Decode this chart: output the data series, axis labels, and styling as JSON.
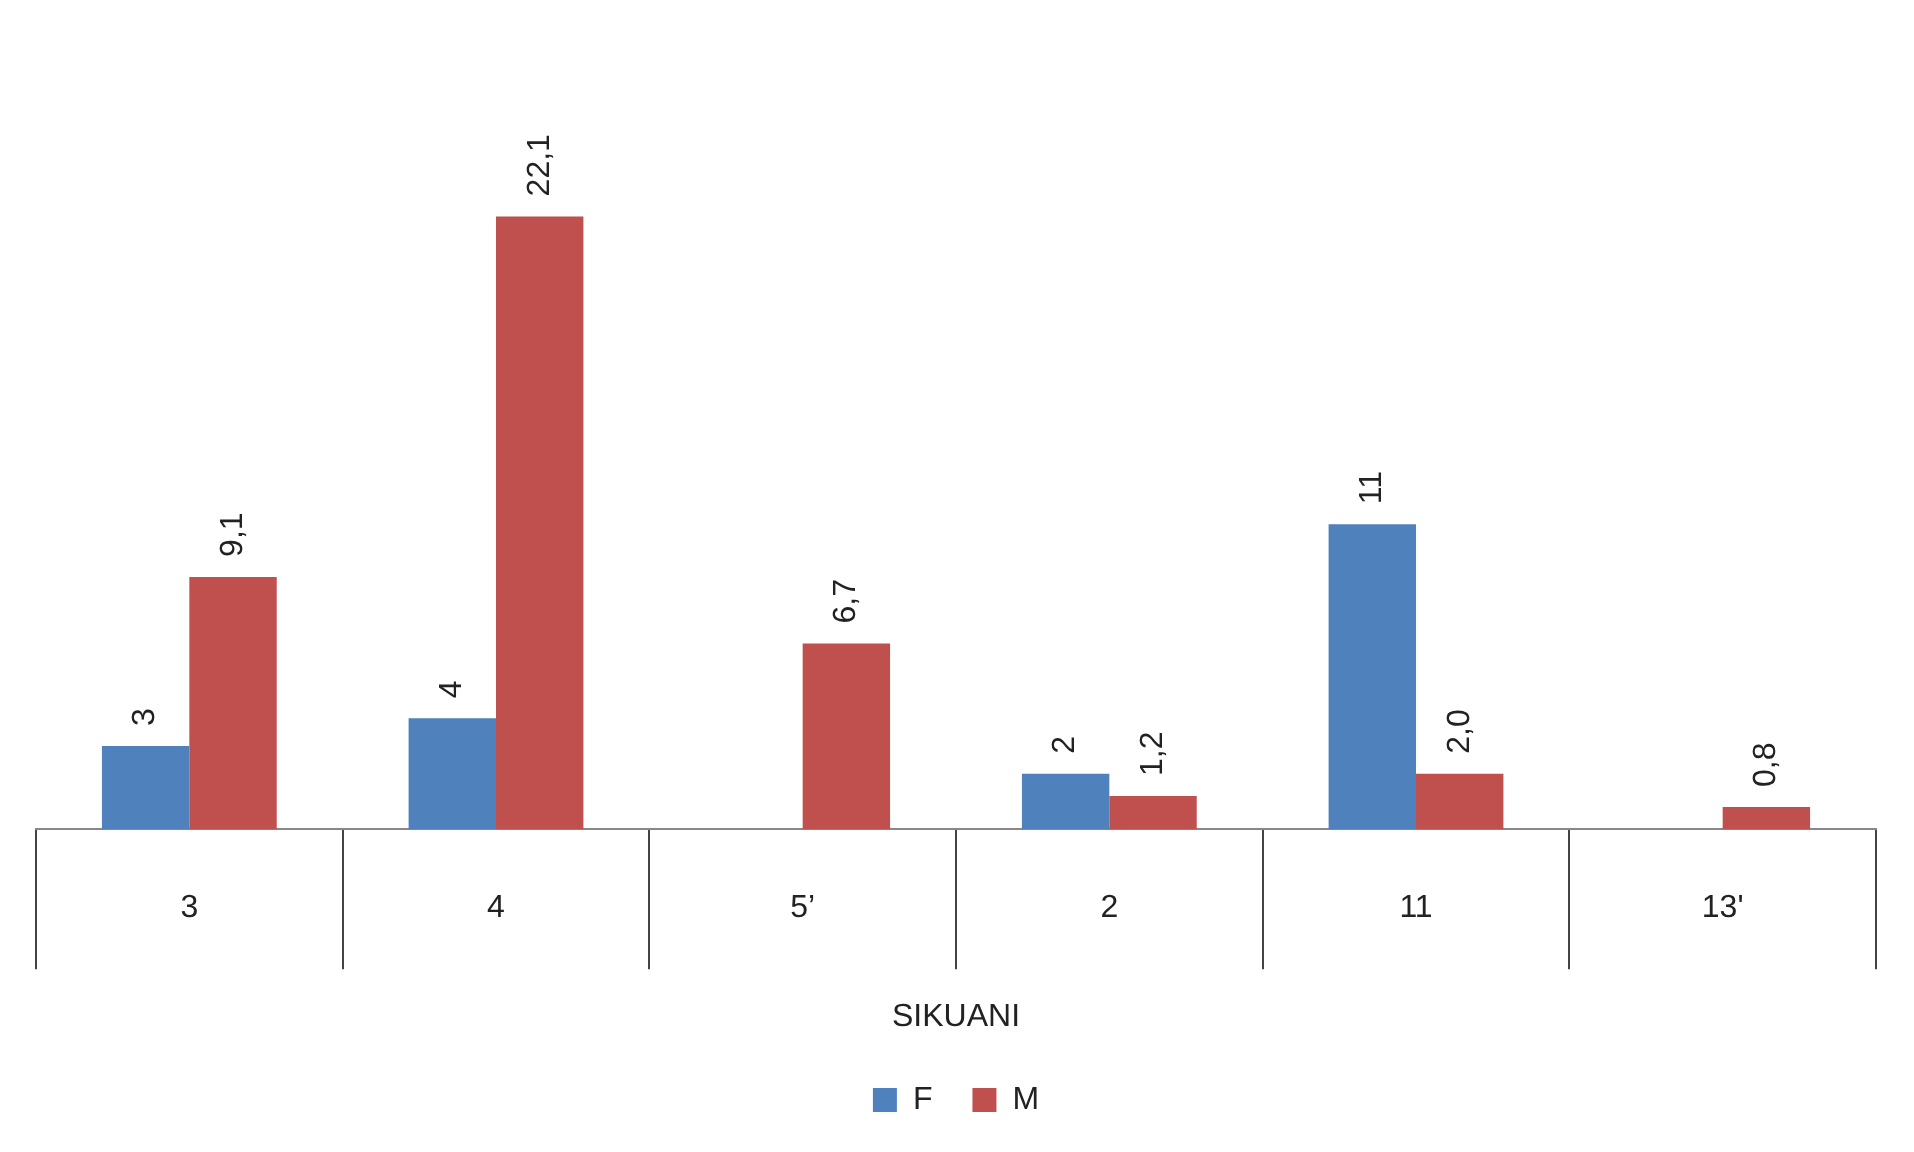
{
  "chart_data": {
    "type": "bar",
    "xlabel": "SIKUANI",
    "categories": [
      "3",
      "4",
      "5’",
      "2",
      "11",
      "13'"
    ],
    "series": [
      {
        "name": "F",
        "color": "#4f81bd",
        "values": [
          3,
          4,
          null,
          2,
          11,
          null
        ],
        "value_labels": [
          "3",
          "4",
          null,
          "2",
          "11",
          null
        ]
      },
      {
        "name": "M",
        "color": "#c0504d",
        "values": [
          9.1,
          22.1,
          6.7,
          1.2,
          2.0,
          0.8
        ],
        "value_labels": [
          "9,1",
          "22,1",
          "6,7",
          "1,2",
          "2,0",
          "0,8"
        ]
      }
    ],
    "legend": "bottom",
    "grid": false
  }
}
